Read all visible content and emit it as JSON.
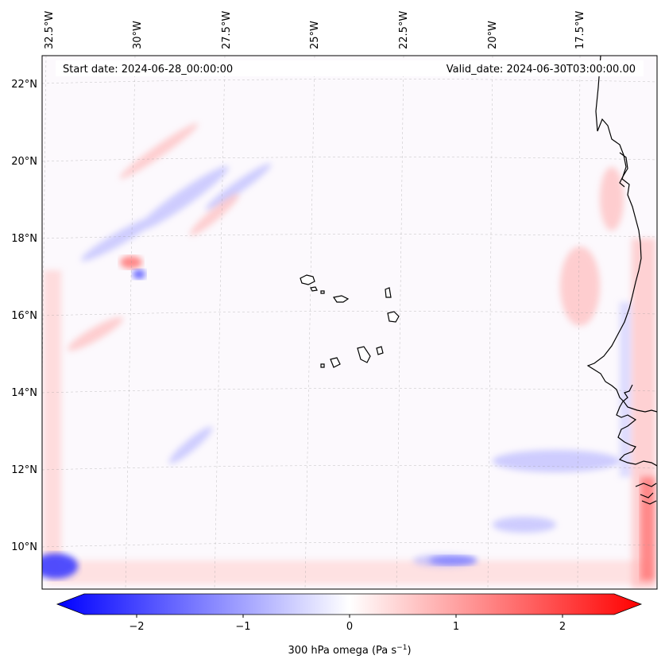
{
  "map": {
    "start_date_label": "Start date: 2024-06-28_00:00:00",
    "valid_date_label": "Valid_date: 2024-06-30T03:00:00.00",
    "lon_labels": [
      "32.5°W",
      "30°W",
      "27.5°W",
      "25°W",
      "22.5°W",
      "20°W",
      "17.5°W"
    ],
    "lat_labels": [
      "22°N",
      "20°N",
      "18°N",
      "16°N",
      "14°N",
      "12°N",
      "10°N"
    ]
  },
  "colorbar": {
    "tick_labels": [
      "−2",
      "−1",
      "0",
      "1",
      "2"
    ],
    "label": "300 hPa omega (Pa s",
    "label_sup": "−1",
    "label_end": ")",
    "colors": {
      "min": "#0000ff",
      "mid": "#ffffff",
      "max": "#ff0000"
    }
  }
}
